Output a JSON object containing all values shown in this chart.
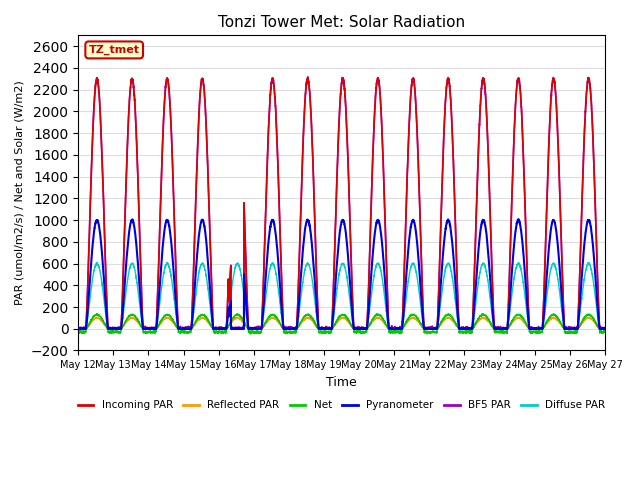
{
  "title": "Tonzi Tower Met: Solar Radiation",
  "ylabel": "PAR (umol/m2/s) / Net and Solar (W/m2)",
  "xlabel": "Time",
  "ylim": [
    -200,
    2700
  ],
  "yticks": [
    -200,
    0,
    200,
    400,
    600,
    800,
    1000,
    1200,
    1400,
    1600,
    1800,
    2000,
    2200,
    2400,
    2600
  ],
  "tz_label": "TZ_tmet",
  "tz_label_color": "#cc0000",
  "tz_box_facecolor": "#ffffcc",
  "tz_box_edgecolor": "#cc0000",
  "n_days": 15,
  "xtick_labels": [
    "May 12",
    "May 13",
    "May 14",
    "May 15",
    "May 16",
    "May 17",
    "May 18",
    "May 19",
    "May 20",
    "May 21",
    "May 22",
    "May 23",
    "May 24",
    "May 25",
    "May 26",
    "May 27"
  ],
  "series": {
    "incoming_par": {
      "label": "Incoming PAR",
      "color": "#dd0000",
      "lw": 1.2
    },
    "reflected_par": {
      "label": "Reflected PAR",
      "color": "#ff9900",
      "lw": 1.0
    },
    "net": {
      "label": "Net",
      "color": "#00cc00",
      "lw": 1.0
    },
    "pyranometer": {
      "label": "Pyranometer",
      "color": "#0000dd",
      "lw": 1.5
    },
    "bf5_par": {
      "label": "BF5 PAR",
      "color": "#9900cc",
      "lw": 1.2
    },
    "diffuse_par": {
      "label": "Diffuse PAR",
      "color": "#00cccc",
      "lw": 1.0
    }
  },
  "background_color": "#ffffff",
  "grid_color": "#dddddd"
}
